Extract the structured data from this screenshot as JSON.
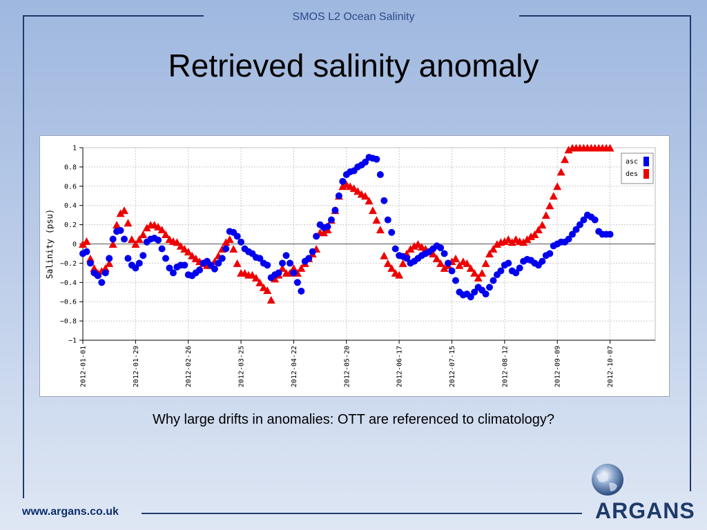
{
  "header": {
    "label": "SMOS L2 Ocean Salinity"
  },
  "title": "Retrieved salinity anomaly",
  "question": "Why large drifts in anomalies: OTT are referenced to climatology?",
  "footer": {
    "url": "www.argans.co.uk",
    "logo_text": "ARGANS"
  },
  "colors": {
    "frame": "#1f3a6b",
    "asc": "#0000ee",
    "des": "#ee0000"
  },
  "chart_data": {
    "type": "scatter",
    "title": "",
    "xlabel": "",
    "ylabel": "Salinity (psu)",
    "ylim": [
      -1,
      1
    ],
    "xlim": [
      "2012-01-01",
      "2012-10-31"
    ],
    "yticks": [
      "1",
      "0.8",
      "0.6",
      "0.4",
      "0.2",
      "0",
      "−0.2",
      "−0.4",
      "−0.6",
      "−0.8",
      "−1"
    ],
    "xticks": [
      "2012-01-01",
      "2012-01-29",
      "2012-02-26",
      "2012-03-25",
      "2012-04-22",
      "2012-05-20",
      "2012-06-17",
      "2012-07-15",
      "2012-08-12",
      "2012-09-09",
      "2012-10-07"
    ],
    "grid": true,
    "legend": "top-right",
    "series": [
      {
        "name": "asc",
        "marker": "circle",
        "x": [
          "2012-01-01",
          "2012-01-03",
          "2012-01-05",
          "2012-01-07",
          "2012-01-09",
          "2012-01-11",
          "2012-01-13",
          "2012-01-15",
          "2012-01-17",
          "2012-01-19",
          "2012-01-21",
          "2012-01-23",
          "2012-01-25",
          "2012-01-27",
          "2012-01-29",
          "2012-01-31",
          "2012-02-02",
          "2012-02-04",
          "2012-02-06",
          "2012-02-08",
          "2012-02-10",
          "2012-02-12",
          "2012-02-14",
          "2012-02-16",
          "2012-02-18",
          "2012-02-20",
          "2012-02-22",
          "2012-02-24",
          "2012-02-26",
          "2012-02-28",
          "2012-03-01",
          "2012-03-03",
          "2012-03-05",
          "2012-03-07",
          "2012-03-09",
          "2012-03-11",
          "2012-03-13",
          "2012-03-15",
          "2012-03-17",
          "2012-03-19",
          "2012-03-21",
          "2012-03-23",
          "2012-03-25",
          "2012-03-27",
          "2012-03-29",
          "2012-03-31",
          "2012-04-02",
          "2012-04-04",
          "2012-04-06",
          "2012-04-08",
          "2012-04-10",
          "2012-04-12",
          "2012-04-14",
          "2012-04-16",
          "2012-04-18",
          "2012-04-20",
          "2012-04-22",
          "2012-04-24",
          "2012-04-26",
          "2012-04-28",
          "2012-04-30",
          "2012-05-02",
          "2012-05-04",
          "2012-05-06",
          "2012-05-08",
          "2012-05-10",
          "2012-05-12",
          "2012-05-14",
          "2012-05-16",
          "2012-05-18",
          "2012-05-20",
          "2012-05-22",
          "2012-05-24",
          "2012-05-26",
          "2012-05-28",
          "2012-05-30",
          "2012-06-01",
          "2012-06-03",
          "2012-06-05",
          "2012-06-07",
          "2012-06-09",
          "2012-06-11",
          "2012-06-13",
          "2012-06-15",
          "2012-06-17",
          "2012-06-19",
          "2012-06-21",
          "2012-06-23",
          "2012-06-25",
          "2012-06-27",
          "2012-06-29",
          "2012-07-01",
          "2012-07-03",
          "2012-07-05",
          "2012-07-07",
          "2012-07-09",
          "2012-07-11",
          "2012-07-13",
          "2012-07-15",
          "2012-07-17",
          "2012-07-19",
          "2012-07-21",
          "2012-07-23",
          "2012-07-25",
          "2012-07-27",
          "2012-07-29",
          "2012-07-31",
          "2012-08-02",
          "2012-08-04",
          "2012-08-06",
          "2012-08-08",
          "2012-08-10",
          "2012-08-12",
          "2012-08-14",
          "2012-08-16",
          "2012-08-18",
          "2012-08-20",
          "2012-08-22",
          "2012-08-24",
          "2012-08-26",
          "2012-08-28",
          "2012-08-30",
          "2012-09-01",
          "2012-09-03",
          "2012-09-05",
          "2012-09-07",
          "2012-09-09",
          "2012-09-11",
          "2012-09-13",
          "2012-09-15",
          "2012-09-17",
          "2012-09-19",
          "2012-09-21",
          "2012-09-23",
          "2012-09-25",
          "2012-09-27",
          "2012-09-29",
          "2012-10-01",
          "2012-10-03",
          "2012-10-05",
          "2012-10-07"
        ],
        "y": [
          -0.1,
          -0.08,
          -0.2,
          -0.3,
          -0.33,
          -0.4,
          -0.3,
          -0.15,
          0.05,
          0.13,
          0.14,
          0.05,
          -0.15,
          -0.22,
          -0.25,
          -0.2,
          -0.12,
          0.02,
          0.05,
          0.06,
          0.04,
          -0.05,
          -0.15,
          -0.25,
          -0.3,
          -0.24,
          -0.22,
          -0.22,
          -0.32,
          -0.33,
          -0.3,
          -0.27,
          -0.2,
          -0.18,
          -0.22,
          -0.26,
          -0.2,
          -0.15,
          -0.05,
          0.13,
          0.12,
          0.08,
          0.02,
          -0.05,
          -0.08,
          -0.1,
          -0.14,
          -0.15,
          -0.2,
          -0.22,
          -0.35,
          -0.32,
          -0.3,
          -0.2,
          -0.12,
          -0.2,
          -0.3,
          -0.4,
          -0.49,
          -0.18,
          -0.15,
          -0.08,
          0.08,
          0.2,
          0.17,
          0.18,
          0.25,
          0.35,
          0.5,
          0.65,
          0.72,
          0.75,
          0.76,
          0.8,
          0.82,
          0.85,
          0.9,
          0.89,
          0.88,
          0.72,
          0.45,
          0.25,
          0.12,
          -0.05,
          -0.12,
          -0.13,
          -0.15,
          -0.2,
          -0.18,
          -0.15,
          -0.12,
          -0.1,
          -0.08,
          -0.05,
          -0.02,
          -0.04,
          -0.1,
          -0.2,
          -0.28,
          -0.38,
          -0.5,
          -0.53,
          -0.52,
          -0.55,
          -0.5,
          -0.45,
          -0.48,
          -0.52,
          -0.45,
          -0.38,
          -0.32,
          -0.28,
          -0.22,
          -0.2,
          -0.28,
          -0.3,
          -0.25,
          -0.18,
          -0.16,
          -0.17,
          -0.2,
          -0.22,
          -0.18,
          -0.12,
          -0.1,
          -0.02,
          0,
          0.02,
          0.02,
          0.05,
          0.1,
          0.15,
          0.2,
          0.25,
          0.3,
          0.28,
          0.25,
          0.13,
          0.1,
          0.1,
          0.1
        ]
      },
      {
        "name": "des",
        "marker": "triangle",
        "x": [
          "2012-01-01",
          "2012-01-03",
          "2012-01-05",
          "2012-01-07",
          "2012-01-09",
          "2012-01-11",
          "2012-01-13",
          "2012-01-15",
          "2012-01-17",
          "2012-01-19",
          "2012-01-21",
          "2012-01-23",
          "2012-01-25",
          "2012-01-27",
          "2012-01-29",
          "2012-01-31",
          "2012-02-02",
          "2012-02-04",
          "2012-02-06",
          "2012-02-08",
          "2012-02-10",
          "2012-02-12",
          "2012-02-14",
          "2012-02-16",
          "2012-02-18",
          "2012-02-20",
          "2012-02-22",
          "2012-02-24",
          "2012-02-26",
          "2012-02-28",
          "2012-03-01",
          "2012-03-03",
          "2012-03-05",
          "2012-03-07",
          "2012-03-09",
          "2012-03-11",
          "2012-03-13",
          "2012-03-15",
          "2012-03-17",
          "2012-03-19",
          "2012-03-21",
          "2012-03-23",
          "2012-03-25",
          "2012-03-27",
          "2012-03-29",
          "2012-03-31",
          "2012-04-02",
          "2012-04-04",
          "2012-04-06",
          "2012-04-08",
          "2012-04-10",
          "2012-04-12",
          "2012-04-14",
          "2012-04-16",
          "2012-04-18",
          "2012-04-20",
          "2012-04-22",
          "2012-04-24",
          "2012-04-26",
          "2012-04-28",
          "2012-04-30",
          "2012-05-02",
          "2012-05-04",
          "2012-05-06",
          "2012-05-08",
          "2012-05-10",
          "2012-05-12",
          "2012-05-14",
          "2012-05-16",
          "2012-05-18",
          "2012-05-20",
          "2012-05-22",
          "2012-05-24",
          "2012-05-26",
          "2012-05-28",
          "2012-05-30",
          "2012-06-01",
          "2012-06-03",
          "2012-06-05",
          "2012-06-07",
          "2012-06-09",
          "2012-06-11",
          "2012-06-13",
          "2012-06-15",
          "2012-06-17",
          "2012-06-19",
          "2012-06-21",
          "2012-06-23",
          "2012-06-25",
          "2012-06-27",
          "2012-06-29",
          "2012-07-01",
          "2012-07-03",
          "2012-07-05",
          "2012-07-07",
          "2012-07-09",
          "2012-07-11",
          "2012-07-13",
          "2012-07-15",
          "2012-07-17",
          "2012-07-19",
          "2012-07-21",
          "2012-07-23",
          "2012-07-25",
          "2012-07-27",
          "2012-07-29",
          "2012-07-31",
          "2012-08-02",
          "2012-08-04",
          "2012-08-06",
          "2012-08-08",
          "2012-08-10",
          "2012-08-12",
          "2012-08-14",
          "2012-08-16",
          "2012-08-18",
          "2012-08-20",
          "2012-08-22",
          "2012-08-24",
          "2012-08-26",
          "2012-08-28",
          "2012-08-30",
          "2012-09-01",
          "2012-09-03",
          "2012-09-05",
          "2012-09-07",
          "2012-09-09",
          "2012-09-11",
          "2012-09-13",
          "2012-09-15",
          "2012-09-17",
          "2012-09-19",
          "2012-09-21",
          "2012-09-23",
          "2012-09-25",
          "2012-09-27",
          "2012-09-29",
          "2012-10-01",
          "2012-10-03",
          "2012-10-05",
          "2012-10-07"
        ],
        "y": [
          0,
          0.03,
          -0.15,
          -0.25,
          -0.3,
          -0.28,
          -0.25,
          -0.2,
          0,
          0.2,
          0.32,
          0.35,
          0.22,
          0.05,
          0,
          0.05,
          0.1,
          0.17,
          0.2,
          0.2,
          0.18,
          0.15,
          0.1,
          0.05,
          0.03,
          0.02,
          -0.02,
          -0.05,
          -0.08,
          -0.12,
          -0.15,
          -0.18,
          -0.2,
          -0.22,
          -0.22,
          -0.18,
          -0.12,
          -0.05,
          0.02,
          0.05,
          -0.05,
          -0.2,
          -0.3,
          -0.3,
          -0.32,
          -0.32,
          -0.35,
          -0.4,
          -0.45,
          -0.48,
          -0.58,
          -0.36,
          -0.32,
          -0.25,
          -0.3,
          -0.3,
          -0.25,
          -0.3,
          -0.25,
          -0.2,
          -0.15,
          -0.1,
          -0.05,
          0.12,
          0.12,
          0.15,
          0.25,
          0.35,
          0.5,
          0.6,
          0.62,
          0.6,
          0.58,
          0.55,
          0.52,
          0.5,
          0.45,
          0.35,
          0.25,
          0.15,
          -0.12,
          -0.2,
          -0.25,
          -0.3,
          -0.32,
          -0.2,
          -0.1,
          -0.05,
          -0.02,
          0,
          -0.03,
          -0.05,
          -0.08,
          -0.1,
          -0.15,
          -0.2,
          -0.25,
          -0.22,
          -0.18,
          -0.15,
          -0.22,
          -0.18,
          -0.2,
          -0.25,
          -0.3,
          -0.35,
          -0.3,
          -0.2,
          -0.1,
          -0.05,
          0,
          0.02,
          0.03,
          0.05,
          0.02,
          0.05,
          0.03,
          0.02,
          0.05,
          0.08,
          0.1,
          0.15,
          0.2,
          0.3,
          0.4,
          0.5,
          0.6,
          0.75,
          0.88,
          0.98,
          1.02,
          1.05,
          1.05,
          1.05,
          1.06,
          1.06,
          1.06,
          1.06,
          1.06,
          1.06,
          1.06
        ]
      }
    ]
  }
}
